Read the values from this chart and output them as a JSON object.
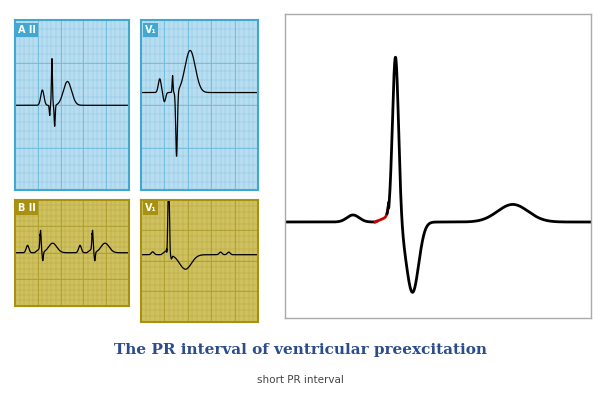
{
  "title": "The PR interval of ventricular preexcitation",
  "subtitle": "short PR interval",
  "title_color": "#2b4d8c",
  "title_fontsize": 11,
  "subtitle_fontsize": 7.5,
  "bg_color": "#ffffff",
  "blue_bg": "#b8ddf0",
  "blue_grid": "#70bedd",
  "blue_label_bg": "#42a8d0",
  "gold_bg": "#cfc060",
  "gold_grid": "#b0a030",
  "gold_label_bg": "#a89010",
  "panel_border_blue": "#42a8d0",
  "panel_border_gold": "#a89010",
  "label_A": "A",
  "label_B": "B",
  "label_II": "II",
  "label_V1": "V₁",
  "main_ecg_color": "#000000",
  "delta_color": "#cc0000"
}
